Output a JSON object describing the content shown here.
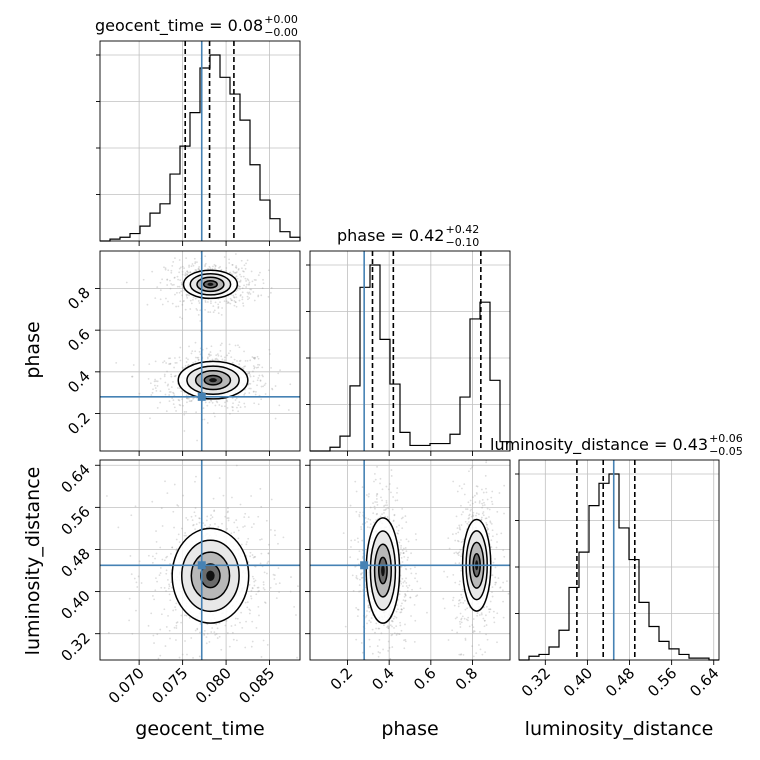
{
  "chart_data": {
    "type": "corner",
    "parameters": [
      "geocent_time",
      "phase",
      "luminosity_distance"
    ],
    "truths": {
      "geocent_time": 0.0772,
      "phase": 0.28,
      "luminosity_distance": 0.45
    },
    "axes_labels": {
      "x": [
        "geocent_time",
        "phase",
        "luminosity_distance"
      ],
      "y": [
        "phase",
        "luminosity_distance"
      ]
    },
    "titles": [
      {
        "param": "geocent_time",
        "text": "geocent_time = 0.08",
        "plus": "+0.00",
        "minus": "−0.00"
      },
      {
        "param": "phase",
        "text": "phase = 0.42",
        "plus": "+0.42",
        "minus": "−0.10"
      },
      {
        "param": "luminosity_distance",
        "text": "luminosity_distance = 0.43",
        "plus": "+0.06",
        "minus": "−0.05"
      }
    ],
    "ranges": {
      "geocent_time": [
        0.0655,
        0.0885
      ],
      "phase": [
        0.02,
        0.98
      ],
      "luminosity_distance": [
        0.27,
        0.65
      ]
    },
    "ticks": {
      "geocent_time": {
        "values": [
          0.07,
          0.075,
          0.08,
          0.085
        ],
        "labels": [
          "0.070",
          "0.075",
          "0.080",
          "0.085"
        ]
      },
      "phase": {
        "values": [
          0.2,
          0.4,
          0.6,
          0.8
        ],
        "labels": [
          "0.2",
          "0.4",
          "0.6",
          "0.8"
        ]
      },
      "luminosity_distance": {
        "values": [
          0.32,
          0.4,
          0.48,
          0.56,
          0.64
        ],
        "labels": [
          "0.32",
          "0.40",
          "0.48",
          "0.56",
          "0.64"
        ]
      }
    },
    "quantiles": {
      "geocent_time": [
        0.0753,
        0.0781,
        0.0809
      ],
      "phase": [
        0.32,
        0.42,
        0.84
      ],
      "luminosity_distance": [
        0.38,
        0.43,
        0.49
      ]
    },
    "histograms": {
      "geocent_time": {
        "edges_range": [
          0.0655,
          0.0885
        ],
        "counts": [
          0,
          0.01,
          0.02,
          0.04,
          0.08,
          0.15,
          0.2,
          0.36,
          0.51,
          0.69,
          0.93,
          1.0,
          0.88,
          0.79,
          0.65,
          0.41,
          0.22,
          0.12,
          0.05,
          0.02
        ]
      },
      "phase": {
        "edges_range": [
          0.02,
          0.98
        ],
        "counts": [
          0,
          0,
          0.02,
          0.08,
          0.35,
          0.88,
          1.0,
          0.6,
          0.36,
          0.1,
          0.03,
          0.03,
          0.04,
          0.04,
          0.09,
          0.29,
          0.71,
          0.8,
          0.38,
          0.05
        ]
      },
      "luminosity_distance": {
        "edges_range": [
          0.27,
          0.65
        ],
        "counts": [
          0,
          0.02,
          0.03,
          0.07,
          0.16,
          0.39,
          0.58,
          0.83,
          0.95,
          1.0,
          0.71,
          0.54,
          0.31,
          0.18,
          0.1,
          0.06,
          0.03,
          0.01,
          0.01,
          0
        ]
      }
    },
    "blobs_2d": {
      "geocent_time|phase": [
        {
          "cx": 0.0785,
          "cy": 0.36,
          "sx": 0.002,
          "sy": 0.045,
          "w": 1.0
        },
        {
          "cx": 0.0782,
          "cy": 0.82,
          "sx": 0.0016,
          "sy": 0.035,
          "w": 0.8
        }
      ],
      "geocent_time|luminosity_distance": [
        {
          "cx": 0.0782,
          "cy": 0.43,
          "sx": 0.0022,
          "sy": 0.045,
          "w": 1.0
        }
      ],
      "phase|luminosity_distance": [
        {
          "cx": 0.37,
          "cy": 0.44,
          "sx": 0.04,
          "sy": 0.05,
          "w": 1.0
        },
        {
          "cx": 0.82,
          "cy": 0.45,
          "sx": 0.035,
          "sy": 0.045,
          "w": 0.8
        }
      ]
    },
    "grid": true
  },
  "colors": {
    "truth": "#4682b4",
    "contour": "#000000",
    "scatter": "#9e9e9e",
    "grid": "#c0c0c0"
  }
}
